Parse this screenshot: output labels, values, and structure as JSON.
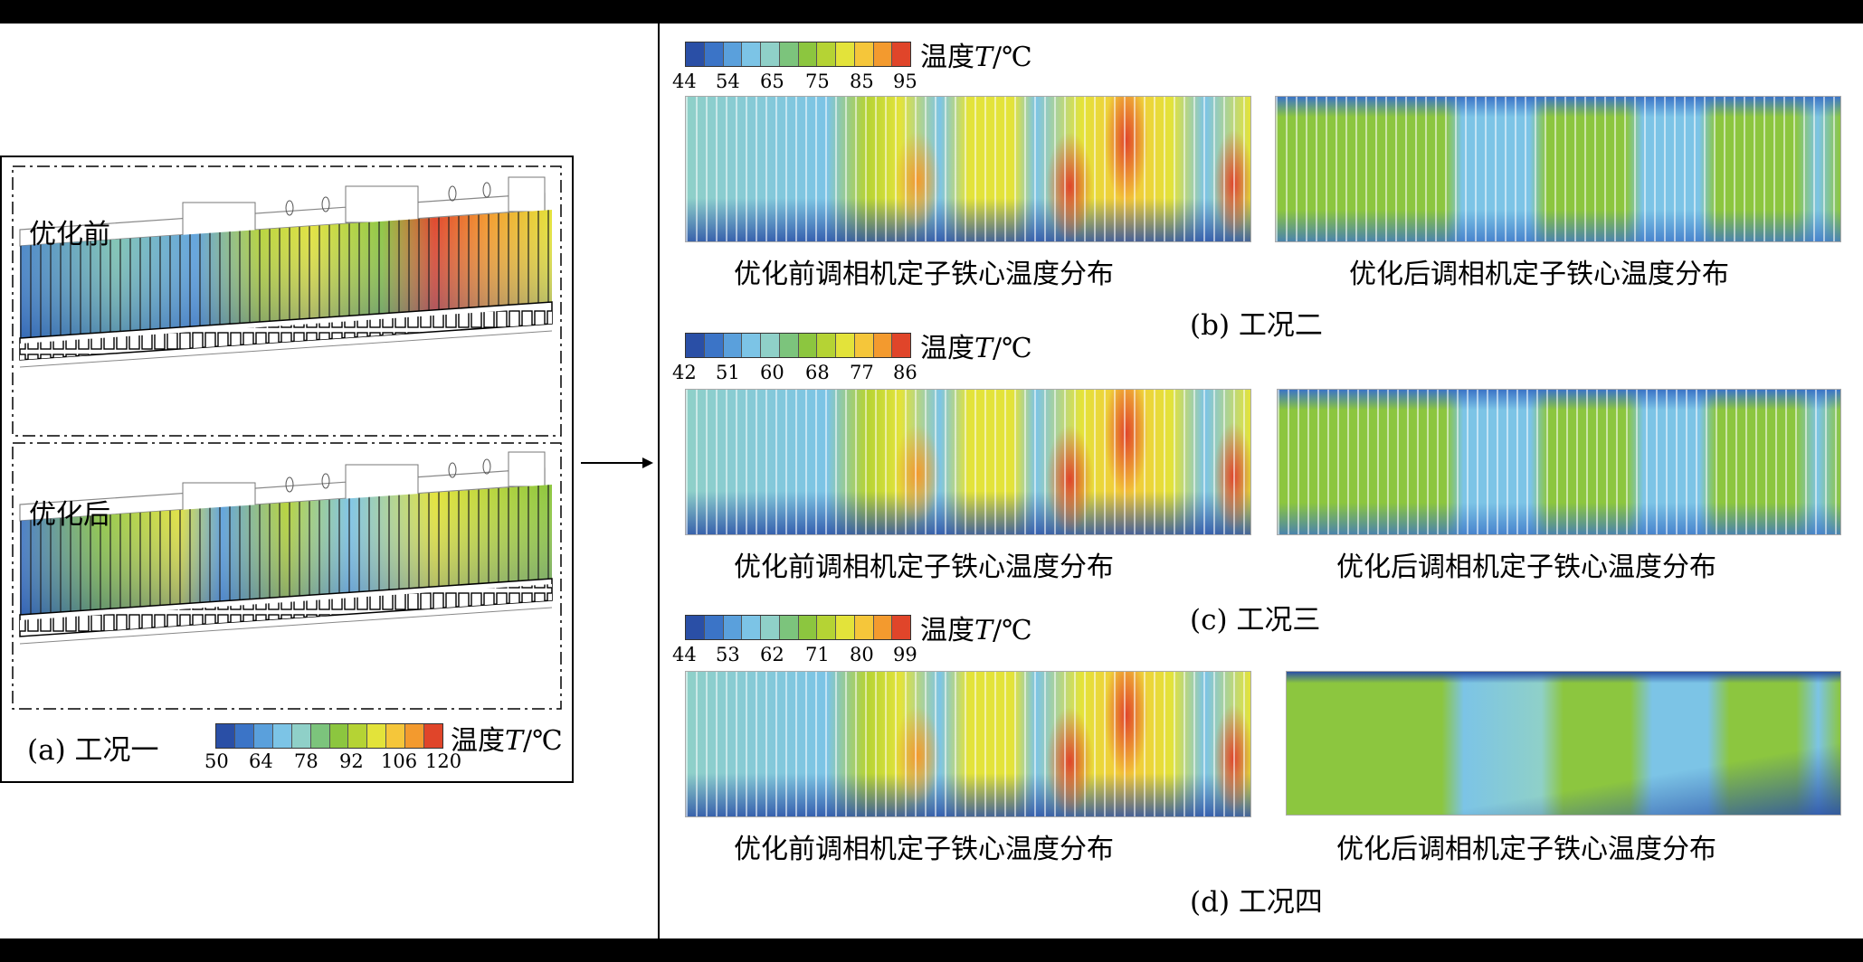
{
  "panel_a": {
    "before_label": "优化前",
    "after_label": "优化后",
    "caption": "(a)  工况一",
    "legend": {
      "title_prefix": "温度",
      "title_var": "T",
      "title_unit": "/℃",
      "ticks": [
        "50",
        "64",
        "78",
        "92",
        "106",
        "120"
      ]
    }
  },
  "panel_b": {
    "legend": {
      "title_prefix": "温度",
      "title_var": "T",
      "title_unit": "/℃",
      "ticks": [
        "44",
        "54",
        "65",
        "75",
        "85",
        "95"
      ]
    },
    "left_caption": "优化前调相机定子铁心温度分布",
    "right_caption": "优化后调相机定子铁心温度分布",
    "caption": "(b)  工况二"
  },
  "panel_c": {
    "legend": {
      "title_prefix": "温度",
      "title_var": "T",
      "title_unit": "/℃",
      "ticks": [
        "42",
        "51",
        "60",
        "68",
        "77",
        "86"
      ]
    },
    "left_caption": "优化前调相机定子铁心温度分布",
    "right_caption": "优化后调相机定子铁心温度分布",
    "caption": "(c)  工况三"
  },
  "panel_d": {
    "legend": {
      "title_prefix": "温度",
      "title_var": "T",
      "title_unit": "/℃",
      "ticks": [
        "44",
        "53",
        "62",
        "71",
        "80",
        "99"
      ]
    },
    "left_caption": "优化前调相机定子铁心温度分布",
    "right_caption": "优化后调相机定子铁心温度分布",
    "caption": "(d)  工况四"
  },
  "colormap": [
    "#2a4fa6",
    "#3b74c7",
    "#5aa0dc",
    "#7cc4e6",
    "#8fd0c8",
    "#7cc47c",
    "#8cc63f",
    "#b5d334",
    "#e3e33a",
    "#f5c63a",
    "#f39a2e",
    "#e0452a"
  ]
}
